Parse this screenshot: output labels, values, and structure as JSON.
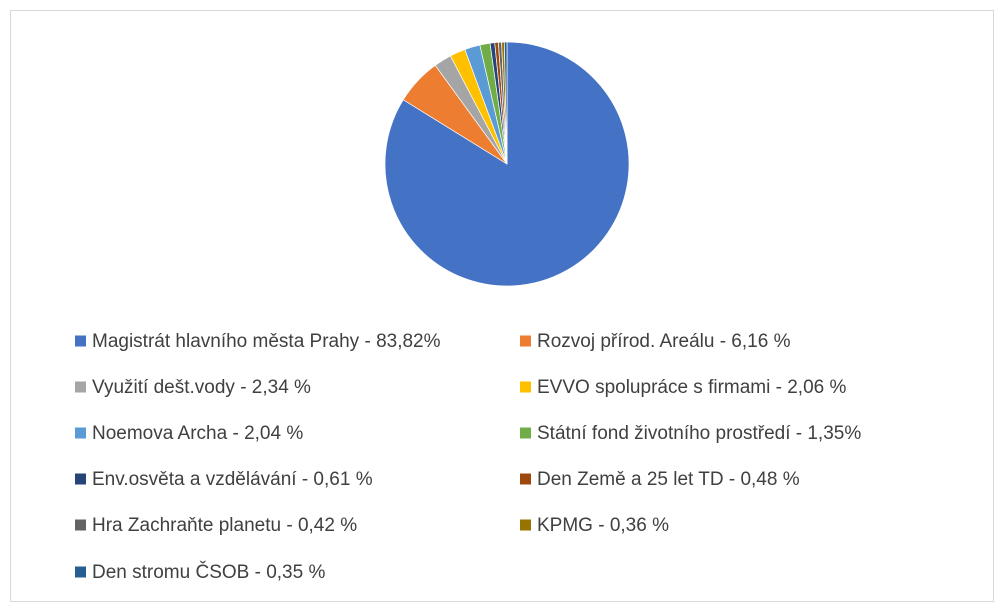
{
  "chart_data": {
    "type": "pie",
    "categories": [
      "Magistrát hlavního města Prahy - 83,82%",
      "Rozvoj přírod. Areálu - 6,16 %",
      "Využití dešt.vody - 2,34 %",
      "EVVO spolupráce s firmami - 2,06 %",
      "Noemova Archa - 2,04 %",
      "Státní fond životního prostředí - 1,35%",
      "Env.osvěta a vzdělávání - 0,61 %",
      "Den Země a 25 let TD - 0,48 %",
      "Hra Zachraňte planetu - 0,42 %",
      "KPMG - 0,36 %",
      "Den stromu ČSOB - 0,35 %"
    ],
    "values": [
      83.82,
      6.16,
      2.34,
      2.06,
      2.04,
      1.35,
      0.61,
      0.48,
      0.42,
      0.36,
      0.35
    ],
    "colors": [
      "#4472c4",
      "#ed7d31",
      "#a5a5a5",
      "#ffc000",
      "#5b9bd5",
      "#70ad47",
      "#264478",
      "#9e480e",
      "#636363",
      "#997300",
      "#255e91"
    ]
  }
}
